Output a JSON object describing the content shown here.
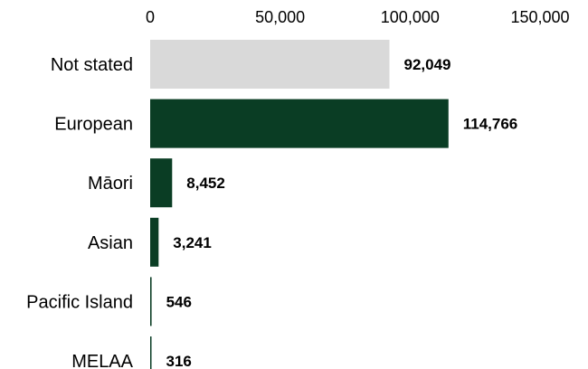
{
  "chart_data": {
    "type": "bar",
    "orientation": "horizontal",
    "title": "",
    "xlabel": "",
    "ylabel": "",
    "xlim": [
      0,
      150000
    ],
    "ticks": [
      {
        "value": 0,
        "label": "0"
      },
      {
        "value": 50000,
        "label": "50,000"
      },
      {
        "value": 100000,
        "label": "100,000"
      },
      {
        "value": 150000,
        "label": "150,000"
      }
    ],
    "grid": false,
    "legend": "none",
    "tick_position": "top",
    "categories": [
      "Not stated",
      "European",
      "Māori",
      "Asian",
      "Pacific Island",
      "MELAA"
    ],
    "values": [
      92049,
      114766,
      8452,
      3241,
      546,
      316
    ],
    "value_labels": [
      "92,049",
      "114,766",
      "8,452",
      "3,241",
      "546",
      "316"
    ],
    "colors": [
      "#d9d9d9",
      "#0a3d24",
      "#0a3d24",
      "#0a3d24",
      "#0a3d24",
      "#0a3d24"
    ]
  }
}
